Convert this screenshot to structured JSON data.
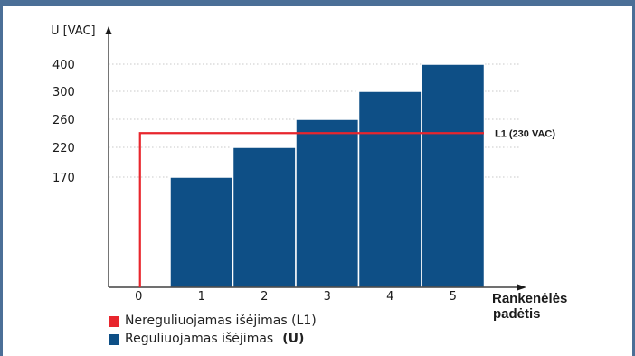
{
  "chart_data": {
    "type": "bar",
    "ylabel": "U [VAC]",
    "xlabel_line1": "Rankenėlės",
    "xlabel_line2": "padėtis",
    "categories": [
      "0",
      "1",
      "2",
      "3",
      "4",
      "5"
    ],
    "series": [
      {
        "name": "Reguliuojamas išėjimas",
        "name_suffix": "(U)",
        "color": "#0e4f86",
        "values": [
          null,
          170,
          220,
          260,
          300,
          400
        ]
      }
    ],
    "ytick_labels": [
      "170",
      "220",
      "260",
      "300",
      "400"
    ],
    "reference_line": {
      "name": "Nereguliuojamas išėjimas (L1)",
      "label": "L1 (230 VAC)",
      "value": 230,
      "color": "#e8262d",
      "starts_at_position": 0.5
    },
    "grid": "dotted horizontal",
    "legend_placement": "bottom-left"
  }
}
